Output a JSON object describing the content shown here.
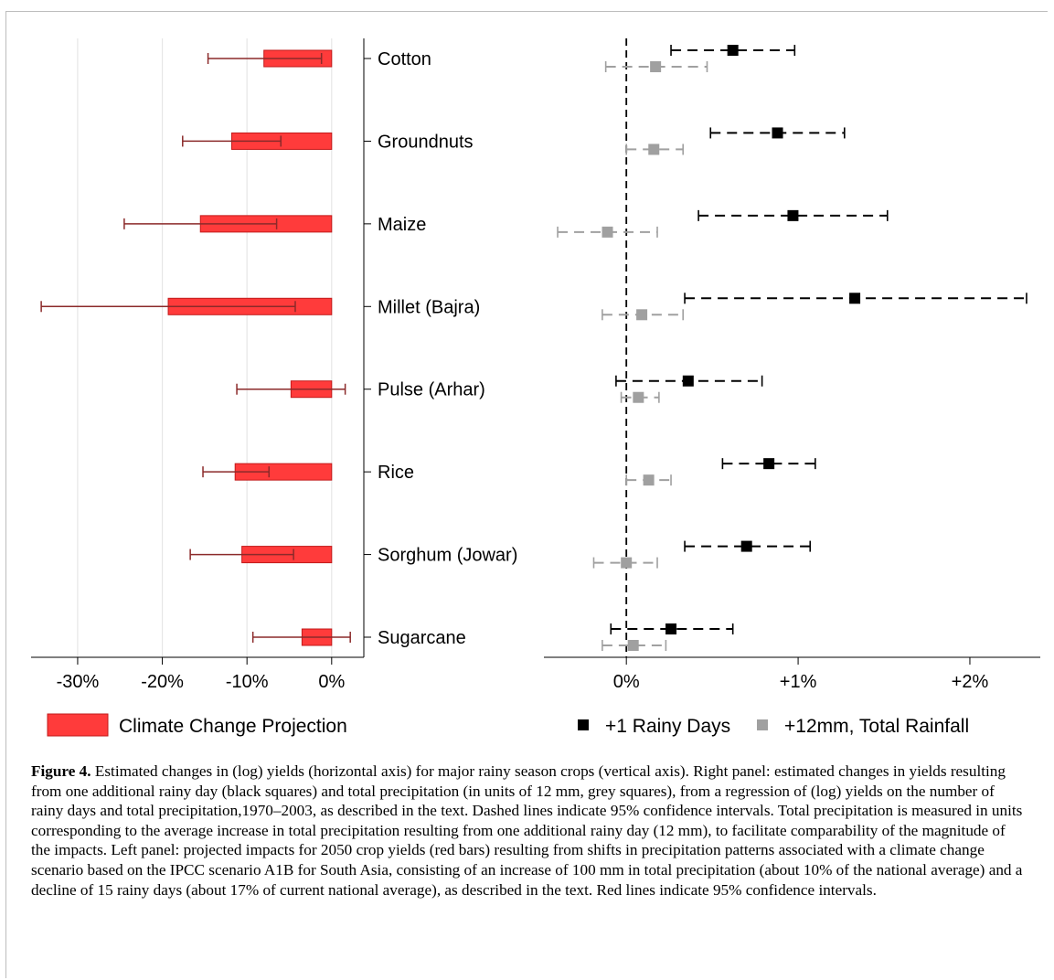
{
  "chart_data": [
    {
      "type": "bar",
      "orientation": "horizontal",
      "categories": [
        "Cotton",
        "Groundnuts",
        "Maize",
        "Millet (Bajra)",
        "Pulse (Arhar)",
        "Rice",
        "Sorghum (Jowar)",
        "Sugarcane"
      ],
      "series": [
        {
          "name": "Climate Change Projection",
          "color": "#ff3b3b",
          "values": [
            -0.08,
            -0.118,
            -0.155,
            -0.193,
            -0.048,
            -0.114,
            -0.106,
            -0.035
          ],
          "ci_low": [
            -0.146,
            -0.176,
            -0.245,
            -0.343,
            -0.112,
            -0.152,
            -0.167,
            -0.093
          ],
          "ci_high": [
            -0.012,
            -0.06,
            -0.065,
            -0.043,
            0.016,
            -0.074,
            -0.045,
            0.022
          ]
        }
      ],
      "xlim": [
        -0.355,
        0.038
      ],
      "xticks": [
        -0.3,
        -0.2,
        -0.1,
        0
      ],
      "xtick_labels": [
        "-30%",
        "-20%",
        "-10%",
        "0%"
      ],
      "grid": true
    },
    {
      "type": "scatter",
      "categories": [
        "Cotton",
        "Groundnuts",
        "Maize",
        "Millet (Bajra)",
        "Pulse (Arhar)",
        "Rice",
        "Sorghum (Jowar)",
        "Sugarcane"
      ],
      "series": [
        {
          "name": "+1 Rainy Days",
          "color": "#000000",
          "values": [
            0.0062,
            0.0088,
            0.0097,
            0.0133,
            0.0036,
            0.0083,
            0.007,
            0.0026
          ],
          "ci_low": [
            0.0026,
            0.0049,
            0.0042,
            0.0034,
            -0.0006,
            0.0056,
            0.0034,
            -0.0009
          ],
          "ci_high": [
            0.0098,
            0.0127,
            0.0152,
            0.0233,
            0.0079,
            0.011,
            0.0107,
            0.0062
          ]
        },
        {
          "name": "+12mm, Total Rainfall",
          "color": "#a0a0a0",
          "values": [
            0.0017,
            0.0016,
            -0.0011,
            0.0009,
            0.0007,
            0.0013,
            0.0,
            0.0004
          ],
          "ci_low": [
            -0.0012,
            0.0,
            -0.004,
            -0.0014,
            -0.0003,
            0.0,
            -0.0019,
            -0.0014
          ],
          "ci_high": [
            0.0047,
            0.0033,
            0.0018,
            0.0033,
            0.0019,
            0.0026,
            0.0018,
            0.0023
          ]
        }
      ],
      "xlim": [
        -0.0048,
        0.0241
      ],
      "xticks": [
        0,
        0.01,
        0.02
      ],
      "xtick_labels": [
        "0%",
        "+1%",
        "+2%"
      ],
      "reference_line": "dashed vertical line at 0"
    }
  ],
  "legend": {
    "left": "Climate Change Projection",
    "right_black": "+1 Rainy Days",
    "right_grey": "+12mm, Total Rainfall"
  },
  "caption": {
    "label": "Figure 4.",
    "text": " Estimated changes in (log) yields (horizontal axis) for major rainy season crops (vertical axis). Right panel: estimated changes in yields resulting from one additional rainy day (black squares) and total precipitation (in units of 12 mm, grey squares), from a regression of (log) yields on the number of rainy days and total precipitation,1970–2003, as described in the text. Dashed lines indicate 95% confidence intervals. Total precipitation is measured in units corresponding to the average increase in total precipitation resulting from one additional rainy day (12 mm), to facilitate comparability of the magnitude of the impacts. Left panel: projected impacts for 2050 crop yields (red bars) resulting from shifts in precipitation patterns associated with a climate change scenario based on the IPCC scenario A1B for South Asia, consisting of an increase of 100 mm in total precipitation (about 10% of the national average) and a decline of 15 rainy days (about 17% of current national average), as described in the text. Red lines indicate 95% confidence intervals."
  }
}
